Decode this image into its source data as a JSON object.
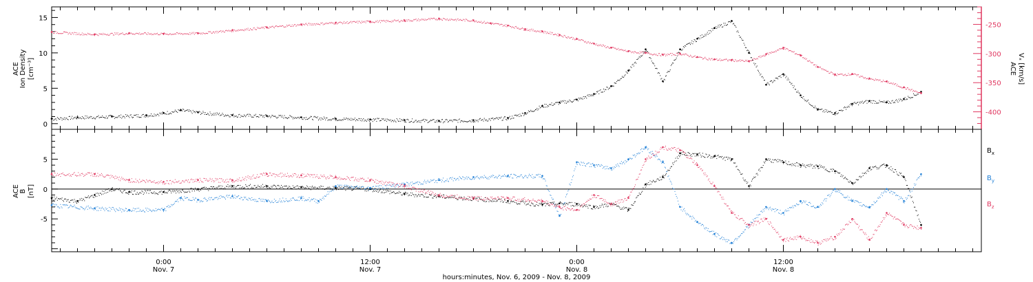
{
  "colors": {
    "axis": "#000000",
    "density": "#000000",
    "speed": "#e0365f",
    "bx": "#000000",
    "by": "#1f7fd6",
    "bz": "#e0365f"
  },
  "xaxis": {
    "title": "hours:minutes, Nov.  6, 2009 - Nov.  8, 2009",
    "range_hours": [
      -6.5,
      47.5
    ],
    "ticks": [
      {
        "hour": 0,
        "time": "0:00",
        "date": "Nov. 7"
      },
      {
        "hour": 12,
        "time": "12:00",
        "date": "Nov. 7"
      },
      {
        "hour": 24,
        "time": "0:00",
        "date": "Nov. 8"
      },
      {
        "hour": 36,
        "time": "12:00",
        "date": "Nov. 8"
      }
    ]
  },
  "chart_data": [
    {
      "type": "scatter",
      "panel": "ion-density-speed",
      "left_axis": {
        "label_lines": [
          "ACE",
          "Ion Density",
          "[cm⁻³]"
        ],
        "ylim": [
          -0.8,
          16.5
        ],
        "ticks": [
          "0",
          "5",
          "10",
          "15"
        ],
        "tick_values": [
          0,
          5,
          10,
          15
        ]
      },
      "right_axis": {
        "label_lines": [
          "ACE",
          "Vₓ [km/s]"
        ],
        "ylim": [
          -430,
          -220
        ],
        "ticks": [
          "-250",
          "-300",
          "-350",
          "-400"
        ],
        "tick_values": [
          -250,
          -300,
          -350,
          -400
        ]
      },
      "series": [
        {
          "axis": "left",
          "x_hours": [
            -6.5,
            -5,
            -3,
            -1,
            0,
            1,
            2,
            4,
            6,
            8,
            10,
            12,
            14,
            16,
            18,
            20,
            21,
            22,
            23,
            24,
            25,
            26,
            27,
            28,
            29,
            30,
            31,
            32,
            33,
            34,
            35,
            36,
            37,
            38,
            39,
            40,
            41,
            42,
            43,
            44
          ],
          "values": [
            0.7,
            0.9,
            1.0,
            1.2,
            1.5,
            1.9,
            1.6,
            1.2,
            1.1,
            0.9,
            0.7,
            0.6,
            0.5,
            0.4,
            0.5,
            0.8,
            1.5,
            2.5,
            3.0,
            3.4,
            4.2,
            5.3,
            7.5,
            10.5,
            6.0,
            10.5,
            12.0,
            13.5,
            14.5,
            10.0,
            5.5,
            7.0,
            4.0,
            2.0,
            1.5,
            2.8,
            3.2,
            3.0,
            3.5,
            4.5
          ]
        },
        {
          "axis": "right",
          "x_hours": [
            -6.5,
            -4,
            -2,
            0,
            2,
            4,
            6,
            8,
            10,
            12,
            14,
            16,
            18,
            19,
            20,
            21,
            22,
            23,
            24,
            25,
            26,
            27,
            28,
            29,
            30,
            31,
            32,
            33,
            34,
            35,
            36,
            37,
            38,
            39,
            40,
            41,
            42,
            43,
            44
          ],
          "values": [
            -263,
            -267,
            -265,
            -266,
            -265,
            -260,
            -255,
            -250,
            -247,
            -245,
            -243,
            -240,
            -243,
            -248,
            -252,
            -258,
            -262,
            -268,
            -275,
            -283,
            -290,
            -296,
            -299,
            -302,
            -300,
            -306,
            -310,
            -311,
            -313,
            -301,
            -290,
            -303,
            -323,
            -336,
            -335,
            -343,
            -348,
            -358,
            -368
          ]
        }
      ]
    },
    {
      "type": "scatter",
      "panel": "magnetic-field",
      "left_axis": {
        "label_lines": [
          "ACE",
          "B",
          "[nT]"
        ],
        "ylim": [
          -10.5,
          10
        ],
        "ticks": [
          "5",
          "0",
          "-5"
        ],
        "tick_values": [
          5,
          0,
          -5
        ]
      },
      "zero_line": true,
      "series": [
        {
          "name": "Bx",
          "x_hours": [
            -6.5,
            -5,
            -4,
            -3,
            -2,
            0,
            2,
            4,
            6,
            8,
            10,
            12,
            14,
            16,
            18,
            20,
            22,
            23,
            24,
            25,
            26,
            27,
            28,
            29,
            30,
            31,
            32,
            33,
            34,
            35,
            36,
            37,
            38,
            39,
            40,
            41,
            42,
            43,
            44
          ],
          "values": [
            -1.5,
            -2.0,
            -1.0,
            0.0,
            -0.5,
            -0.5,
            0.0,
            0.5,
            0.5,
            0.3,
            0.2,
            0.0,
            -0.8,
            -1.2,
            -1.6,
            -2.0,
            -2.6,
            -2.4,
            -2.5,
            -3.0,
            -2.5,
            -3.5,
            0.8,
            2.0,
            6.0,
            5.8,
            5.5,
            5.0,
            0.5,
            5.0,
            4.5,
            4.0,
            3.8,
            3.0,
            1.0,
            3.5,
            4.0,
            2.0,
            -6.0
          ]
        },
        {
          "name": "By",
          "x_hours": [
            -6.5,
            -4,
            -2,
            0,
            1,
            2,
            4,
            6,
            8,
            9,
            10,
            12,
            14,
            16,
            18,
            20,
            22,
            23,
            24,
            25,
            26,
            27,
            28,
            29,
            30,
            31,
            32,
            33,
            34,
            35,
            36,
            37,
            38,
            39,
            40,
            41,
            42,
            43,
            44
          ],
          "values": [
            -2.7,
            -3.2,
            -3.5,
            -3.5,
            -1.5,
            -1.8,
            -1.2,
            -2.0,
            -1.5,
            -2.0,
            0.5,
            0.2,
            0.8,
            1.5,
            2.0,
            2.2,
            2.2,
            -4.5,
            4.5,
            4.0,
            3.5,
            5.0,
            7.0,
            4.5,
            -3.0,
            -5.5,
            -7.5,
            -9.0,
            -6.0,
            -3.0,
            -4.0,
            -2.0,
            -3.0,
            0.0,
            -2.0,
            -3.0,
            0.0,
            -2.0,
            2.5
          ]
        },
        {
          "name": "Bz",
          "x_hours": [
            -6.5,
            -4,
            -2,
            0,
            2,
            4,
            6,
            8,
            10,
            12,
            14,
            16,
            18,
            20,
            22,
            23,
            24,
            25,
            26,
            27,
            28,
            29,
            30,
            31,
            32,
            33,
            34,
            35,
            36,
            37,
            38,
            39,
            40,
            41,
            42,
            43,
            44
          ],
          "values": [
            2.5,
            2.5,
            1.5,
            1.2,
            1.5,
            1.5,
            2.5,
            2.3,
            2.0,
            1.5,
            0.5,
            -1.0,
            -1.5,
            -1.5,
            -2.0,
            -3.0,
            -3.5,
            -1.0,
            -2.5,
            -1.5,
            5.0,
            7.0,
            6.5,
            4.0,
            0.5,
            -4.0,
            -6.0,
            -5.0,
            -8.5,
            -8.0,
            -9.0,
            -8.0,
            -5.0,
            -8.5,
            -4.0,
            -6.0,
            -6.5
          ]
        }
      ]
    }
  ]
}
